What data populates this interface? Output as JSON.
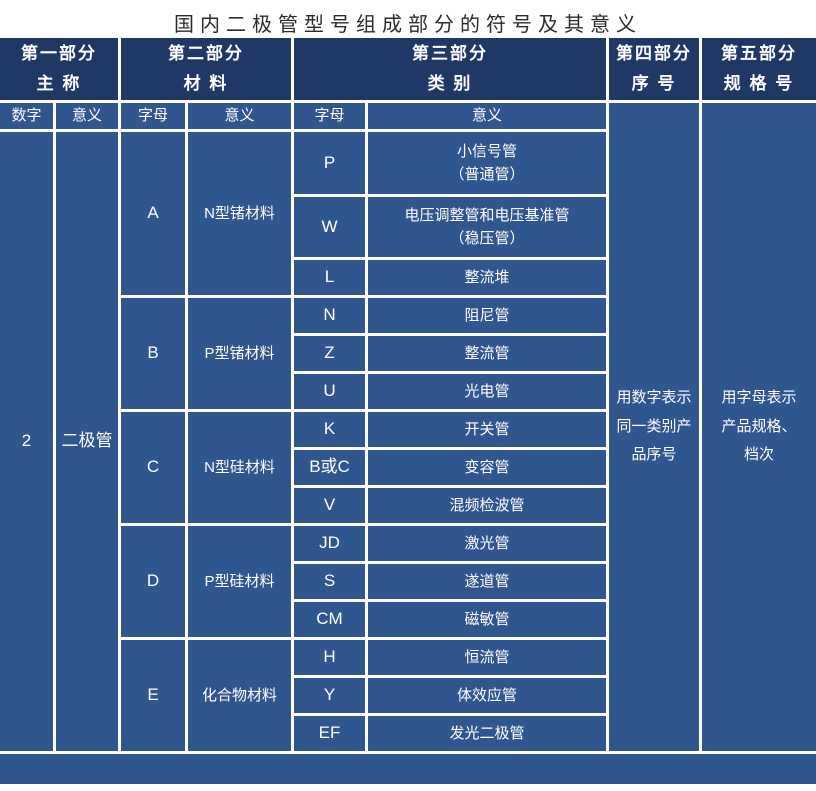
{
  "title": "国内二极管型号组成部分的符号及其意义",
  "colors": {
    "header_bg": "#1F3865",
    "cell_bg": "#30568F",
    "border": "#FFFFFF",
    "title_color": "#2B2B2B"
  },
  "header": {
    "part1": "第一部分\n主 称",
    "part2": "第二部分\n材 料",
    "part3": "第三部分\n类 别",
    "part4": "第四部分\n序 号",
    "part5": "第五部分\n规 格 号"
  },
  "subheader": {
    "c1": "数字",
    "c2": "意义",
    "c3": "字母",
    "c4": "意义",
    "c5": "字母",
    "c6": "意义"
  },
  "part1": {
    "digit": "2",
    "meaning": "二极管"
  },
  "materials": [
    {
      "letter": "A",
      "meaning": "N型锗材料"
    },
    {
      "letter": "B",
      "meaning": "P型锗材料"
    },
    {
      "letter": "C",
      "meaning": "N型硅材料"
    },
    {
      "letter": "D",
      "meaning": "P型硅材料"
    },
    {
      "letter": "E",
      "meaning": "化合物材料"
    }
  ],
  "categories": [
    {
      "letter": "P",
      "meaning": "小信号管\n（普通管）"
    },
    {
      "letter": "W",
      "meaning": "电压调整管和电压基准管\n（稳压管）"
    },
    {
      "letter": "L",
      "meaning": "整流堆"
    },
    {
      "letter": "N",
      "meaning": "阻尼管"
    },
    {
      "letter": "Z",
      "meaning": "整流管"
    },
    {
      "letter": "U",
      "meaning": "光电管"
    },
    {
      "letter": "K",
      "meaning": "开关管"
    },
    {
      "letter": "B或C",
      "meaning": "变容管"
    },
    {
      "letter": "V",
      "meaning": "混频检波管"
    },
    {
      "letter": "JD",
      "meaning": "激光管"
    },
    {
      "letter": "S",
      "meaning": "遂道管"
    },
    {
      "letter": "CM",
      "meaning": "磁敏管"
    },
    {
      "letter": "H",
      "meaning": "恒流管"
    },
    {
      "letter": "Y",
      "meaning": "体效应管"
    },
    {
      "letter": "EF",
      "meaning": "发光二极管"
    }
  ],
  "part4_note": "用数字表示\n同一类别产\n品序号",
  "part5_note": "用字母表示\n产品规格、\n档次"
}
